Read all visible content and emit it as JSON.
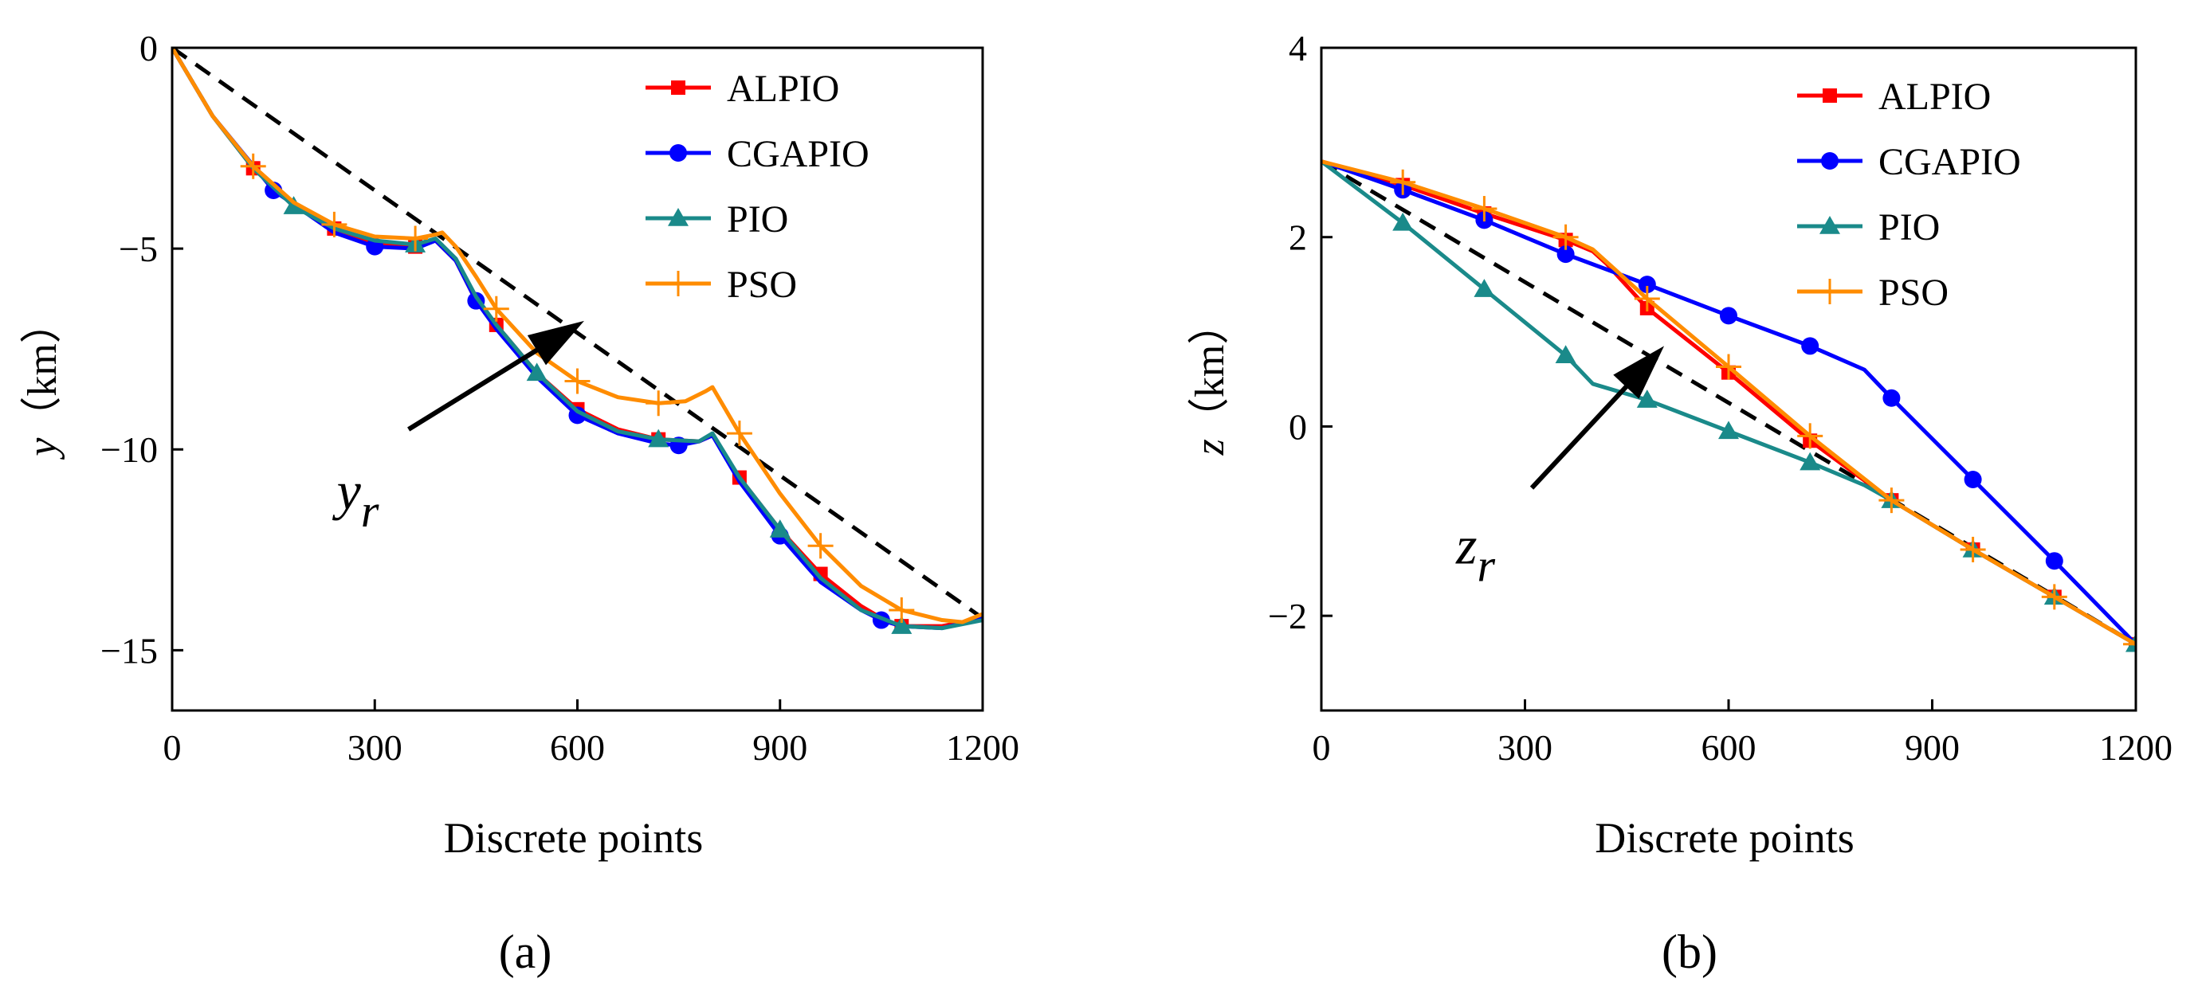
{
  "chart_data": [
    {
      "type": "line",
      "panel": "a",
      "caption": "(a)",
      "title": "",
      "xlabel": "Discrete points",
      "ylabel_var": "y",
      "ylabel_unit": "（km）",
      "xlim": [
        0,
        1200
      ],
      "ylim": [
        -16.5,
        0
      ],
      "xticks": [
        0,
        300,
        600,
        900,
        1200
      ],
      "xtick_labels": [
        "0",
        "300",
        "600",
        "900",
        "1200"
      ],
      "yticks": [
        0,
        -5,
        -10,
        -15
      ],
      "ytick_labels": [
        "0",
        "−5",
        "−10",
        "−15"
      ],
      "legend_position": "top-right",
      "annotation": {
        "label": "y",
        "subscript": "r",
        "arrow_from": [
          350,
          -9.5
        ],
        "arrow_to": [
          610,
          -6.8
        ]
      },
      "reference": {
        "name": "y_r",
        "color": "#000000",
        "dashed": true,
        "x": [
          0,
          1200
        ],
        "y": [
          0,
          -14.2
        ]
      },
      "series": [
        {
          "name": "ALPIO",
          "color": "#ff0000",
          "marker": "square",
          "x": [
            0,
            60,
            120,
            180,
            240,
            300,
            360,
            390,
            420,
            450,
            480,
            540,
            600,
            660,
            720,
            780,
            800,
            840,
            900,
            960,
            1020,
            1060,
            1080,
            1140,
            1200
          ],
          "y": [
            0,
            -1.7,
            -3.0,
            -3.9,
            -4.5,
            -4.85,
            -4.95,
            -4.8,
            -5.3,
            -6.3,
            -6.9,
            -8.1,
            -9.0,
            -9.5,
            -9.75,
            -9.8,
            -9.65,
            -10.7,
            -12.0,
            -13.1,
            -13.9,
            -14.3,
            -14.4,
            -14.4,
            -14.2
          ],
          "markers_x": [
            120,
            240,
            360,
            480,
            600,
            720,
            840,
            960,
            1080
          ],
          "markers_y": [
            -3.0,
            -4.5,
            -4.95,
            -6.9,
            -9.0,
            -9.75,
            -10.7,
            -13.1,
            -14.4
          ]
        },
        {
          "name": "CGAPIO",
          "color": "#0000ff",
          "marker": "circle",
          "x": [
            0,
            60,
            150,
            240,
            300,
            360,
            390,
            420,
            450,
            480,
            540,
            600,
            660,
            720,
            750,
            780,
            800,
            840,
            900,
            960,
            1020,
            1050,
            1080,
            1140,
            1200
          ],
          "y": [
            0,
            -1.7,
            -3.55,
            -4.6,
            -4.95,
            -5.0,
            -4.8,
            -5.3,
            -6.3,
            -7.0,
            -8.2,
            -9.15,
            -9.6,
            -9.85,
            -9.9,
            -9.8,
            -9.65,
            -10.8,
            -12.15,
            -13.3,
            -14.0,
            -14.25,
            -14.4,
            -14.45,
            -14.2
          ],
          "markers_x": [
            150,
            300,
            450,
            600,
            750,
            900,
            1050
          ],
          "markers_y": [
            -3.55,
            -4.95,
            -6.3,
            -9.15,
            -9.9,
            -12.15,
            -14.25
          ]
        },
        {
          "name": "PIO",
          "color": "#1a8a8a",
          "marker": "triangle",
          "x": [
            0,
            60,
            120,
            180,
            240,
            300,
            360,
            390,
            420,
            450,
            480,
            540,
            600,
            660,
            720,
            780,
            800,
            840,
            900,
            960,
            1020,
            1080,
            1140,
            1200
          ],
          "y": [
            0,
            -1.7,
            -3.0,
            -3.95,
            -4.5,
            -4.8,
            -4.9,
            -4.75,
            -5.25,
            -6.2,
            -6.9,
            -8.1,
            -9.05,
            -9.55,
            -9.75,
            -9.8,
            -9.6,
            -10.7,
            -12.0,
            -13.2,
            -14.0,
            -14.4,
            -14.45,
            -14.25
          ],
          "markers_x": [
            180,
            360,
            540,
            720,
            900,
            1080
          ],
          "markers_y": [
            -3.95,
            -4.9,
            -8.1,
            -9.75,
            -12.0,
            -14.4
          ]
        },
        {
          "name": "PSO",
          "color": "#ff8c00",
          "marker": "plus",
          "x": [
            0,
            60,
            120,
            180,
            240,
            300,
            360,
            390,
            400,
            420,
            450,
            480,
            540,
            600,
            660,
            720,
            760,
            790,
            800,
            840,
            900,
            960,
            1020,
            1080,
            1140,
            1170,
            1200
          ],
          "y": [
            0,
            -1.7,
            -2.95,
            -3.85,
            -4.4,
            -4.7,
            -4.75,
            -4.65,
            -4.6,
            -4.95,
            -5.7,
            -6.5,
            -7.6,
            -8.3,
            -8.7,
            -8.85,
            -8.8,
            -8.55,
            -8.45,
            -9.6,
            -11.1,
            -12.4,
            -13.4,
            -14.0,
            -14.25,
            -14.3,
            -14.1
          ],
          "markers_x": [
            120,
            240,
            360,
            480,
            600,
            720,
            840,
            960,
            1080
          ],
          "markers_y": [
            -2.95,
            -4.4,
            -4.75,
            -6.5,
            -8.3,
            -8.85,
            -9.6,
            -12.4,
            -14.0
          ]
        }
      ]
    },
    {
      "type": "line",
      "panel": "b",
      "caption": "(b)",
      "title": "",
      "xlabel": "Discrete points",
      "ylabel_var": "z",
      "ylabel_unit": "（km）",
      "xlim": [
        0,
        1200
      ],
      "ylim": [
        -3,
        4
      ],
      "xticks": [
        0,
        300,
        600,
        900,
        1200
      ],
      "xtick_labels": [
        "0",
        "300",
        "600",
        "900",
        "1200"
      ],
      "yticks": [
        4,
        2,
        0,
        -2
      ],
      "ytick_labels": [
        "4",
        "2",
        "0",
        "−2"
      ],
      "legend_position": "top-right",
      "annotation": {
        "label": "z",
        "subscript": "r",
        "arrow_from": [
          310,
          -0.65
        ],
        "arrow_to": [
          505,
          0.85
        ]
      },
      "reference": {
        "name": "z_r",
        "color": "#000000",
        "dashed": true,
        "x": [
          0,
          1200
        ],
        "y": [
          2.8,
          -2.3
        ]
      },
      "series": [
        {
          "name": "ALPIO",
          "color": "#ff0000",
          "marker": "square",
          "x": [
            0,
            120,
            240,
            360,
            400,
            420,
            480,
            600,
            720,
            840,
            960,
            1080,
            1200
          ],
          "y": [
            2.8,
            2.55,
            2.25,
            1.97,
            1.85,
            1.72,
            1.25,
            0.57,
            -0.15,
            -0.78,
            -1.3,
            -1.8,
            -2.3
          ],
          "markers_x": [
            120,
            240,
            360,
            480,
            600,
            720,
            840,
            960,
            1080,
            1200
          ],
          "markers_y": [
            2.55,
            2.25,
            1.97,
            1.25,
            0.57,
            -0.15,
            -0.78,
            -1.3,
            -1.8,
            -2.3
          ]
        },
        {
          "name": "CGAPIO",
          "color": "#0000ff",
          "marker": "circle",
          "x": [
            0,
            120,
            240,
            360,
            480,
            600,
            720,
            800,
            840,
            960,
            1080,
            1200
          ],
          "y": [
            2.8,
            2.5,
            2.18,
            1.82,
            1.5,
            1.17,
            0.85,
            0.6,
            0.3,
            -0.56,
            -1.42,
            -2.3
          ],
          "markers_x": [
            120,
            240,
            360,
            480,
            600,
            720,
            840,
            960,
            1080
          ],
          "markers_y": [
            2.5,
            2.18,
            1.82,
            1.5,
            1.17,
            0.85,
            0.3,
            -0.56,
            -1.42
          ]
        },
        {
          "name": "PIO",
          "color": "#1a8a8a",
          "marker": "triangle",
          "x": [
            0,
            120,
            240,
            360,
            400,
            480,
            600,
            720,
            800,
            840,
            960,
            1080,
            1200
          ],
          "y": [
            2.8,
            2.15,
            1.45,
            0.75,
            0.45,
            0.28,
            -0.05,
            -0.38,
            -0.62,
            -0.78,
            -1.3,
            -1.8,
            -2.3
          ],
          "markers_x": [
            120,
            240,
            360,
            480,
            600,
            720,
            840,
            960,
            1080,
            1200
          ],
          "markers_y": [
            2.15,
            1.45,
            0.75,
            0.28,
            -0.05,
            -0.38,
            -0.78,
            -1.3,
            -1.8,
            -2.3
          ]
        },
        {
          "name": "PSO",
          "color": "#ff8c00",
          "marker": "plus",
          "x": [
            0,
            120,
            240,
            360,
            400,
            480,
            600,
            720,
            840,
            960,
            1080,
            1200
          ],
          "y": [
            2.8,
            2.58,
            2.3,
            2.0,
            1.87,
            1.35,
            0.63,
            -0.1,
            -0.78,
            -1.3,
            -1.8,
            -2.3
          ],
          "markers_x": [
            120,
            240,
            360,
            480,
            600,
            720,
            840,
            960,
            1080,
            1200
          ],
          "markers_y": [
            2.58,
            2.3,
            2.0,
            1.35,
            0.63,
            -0.1,
            -0.78,
            -1.3,
            -1.8,
            -2.3
          ]
        }
      ]
    }
  ]
}
